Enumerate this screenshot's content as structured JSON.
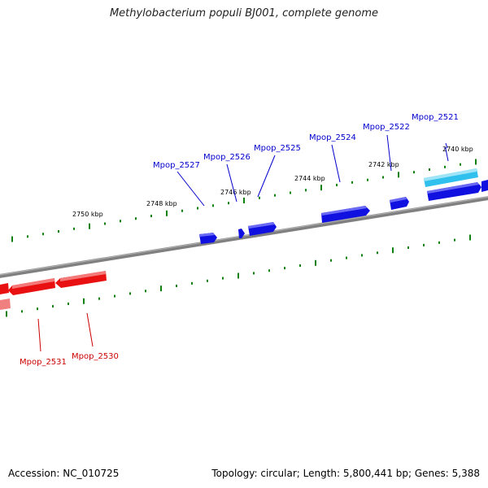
{
  "title": "Methylobacterium populi BJ001, complete genome",
  "footer": {
    "accession": "Accession: NC_010725",
    "stats": "Topology: circular; Length: 5,800,441 bp; Genes: 5,388"
  },
  "colors": {
    "forward_gene": "#1010e0",
    "forward_gene_highlight": "#30c0ee",
    "reverse_gene": "#e81010",
    "reverse_gene_faded": "#f08080",
    "backbone": "#808080",
    "tick": "#108010",
    "forward_label": "#0000cc",
    "reverse_label": "#cc0000"
  },
  "kbp_labels": [
    "2740 kbp",
    "2742 kbp",
    "2744 kbp",
    "2746 kbp",
    "2748 kbp",
    "2750 kbp"
  ],
  "forward_genes": [
    "Mpop_2521",
    "Mpop_2522",
    "Mpop_2524",
    "Mpop_2525",
    "Mpop_2526",
    "Mpop_2527"
  ],
  "reverse_genes": [
    "Mpop_2530",
    "Mpop_2531"
  ]
}
